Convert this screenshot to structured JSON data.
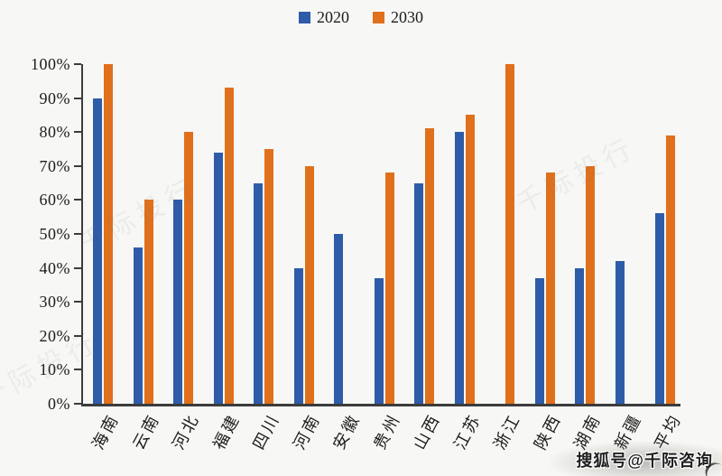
{
  "page": {
    "background": "#f7f7f5"
  },
  "chart_data": {
    "type": "bar",
    "title": "",
    "categories": [
      "海南",
      "云南",
      "河北",
      "福建",
      "四川",
      "河南",
      "安徽",
      "贵州",
      "山西",
      "江苏",
      "浙江",
      "陕西",
      "湖南",
      "新疆",
      "平均"
    ],
    "series": [
      {
        "name": "2020",
        "color": "#2e5ca8",
        "values": [
          90,
          46,
          60,
          74,
          65,
          40,
          50,
          37,
          65,
          80,
          null,
          37,
          40,
          42,
          56
        ]
      },
      {
        "name": "2030",
        "color": "#e0701c",
        "values": [
          100,
          60,
          80,
          93,
          75,
          70,
          null,
          68,
          81,
          85,
          100,
          68,
          70,
          null,
          79
        ]
      }
    ],
    "value_unit": "%",
    "xlabel": "",
    "ylabel": "",
    "ylim": [
      0,
      100
    ],
    "yticks": [
      "0%",
      "10%",
      "20%",
      "30%",
      "40%",
      "50%",
      "60%",
      "70%",
      "80%",
      "90%",
      "100%"
    ],
    "grid": false,
    "legend_position": "top-center",
    "axis_color": "#3c3c3c"
  },
  "watermarks": {
    "sohu_badge": "搜狐号@千际咨询",
    "faint_text": "千际投行"
  }
}
